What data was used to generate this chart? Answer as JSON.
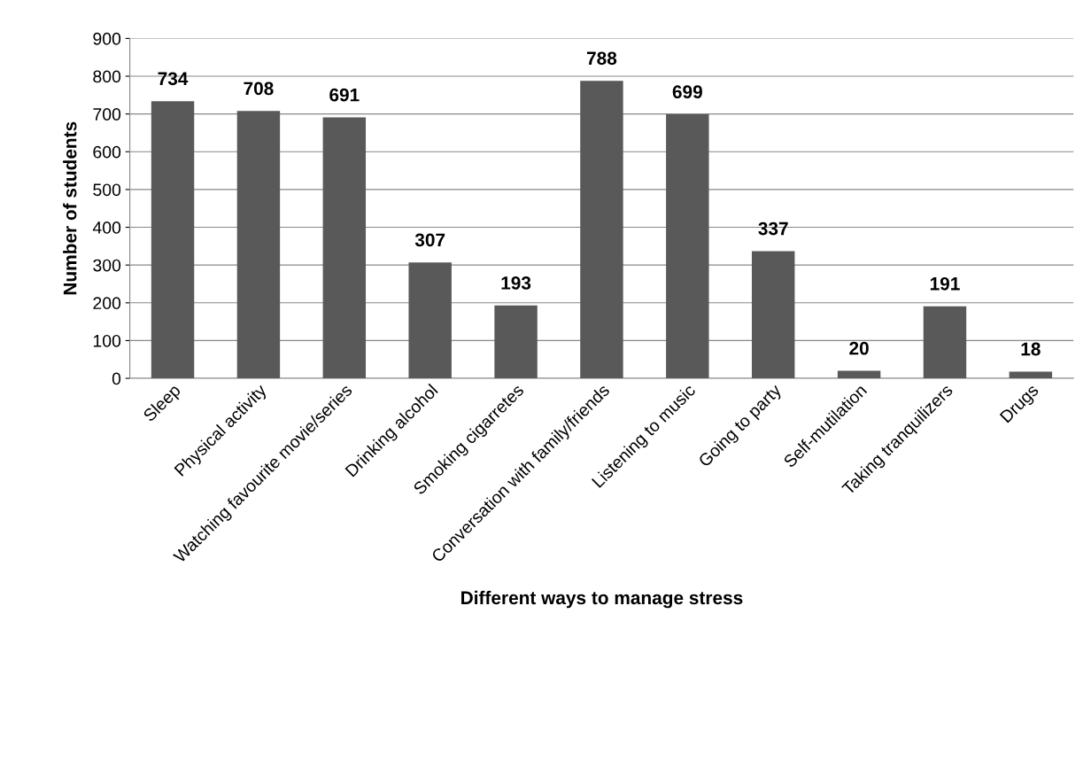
{
  "chart_data": {
    "type": "bar",
    "xlabel": "Different ways to manage stress",
    "ylabel": "Number of students",
    "categories": [
      "Sleep",
      "Physical activity",
      "Watching favourite movie/series",
      "Drinking alcohol",
      "Smoking cigarretes",
      "Conversation with family/friends",
      "Listening to music",
      "Going to party",
      "Self-mutilation",
      "Taking tranquilizers",
      "Drugs"
    ],
    "values": [
      734,
      708,
      691,
      307,
      193,
      788,
      699,
      337,
      20,
      191,
      18
    ],
    "color": "#595959",
    "ylim": [
      0,
      900
    ],
    "yticks": [
      0,
      100,
      200,
      300,
      400,
      500,
      600,
      700,
      800,
      900
    ],
    "grid": "y",
    "data_labels": true
  }
}
